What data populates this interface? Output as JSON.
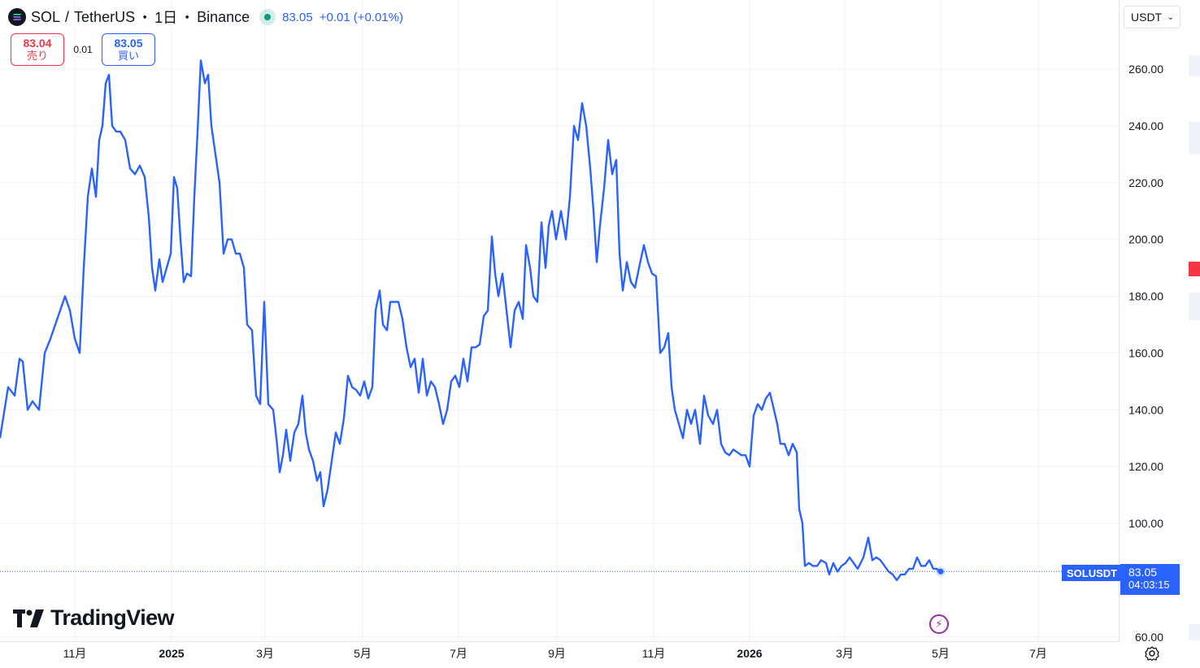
{
  "header": {
    "base": "SOL",
    "quote": "TetherUS",
    "interval": "1日",
    "exchange": "Binance",
    "price": "83.05",
    "change": "+0.01",
    "change_pct": "(+0.01%)"
  },
  "trade": {
    "sell_price": "83.04",
    "sell_label": "売り",
    "spread": "0.01",
    "buy_price": "83.05",
    "buy_label": "買い"
  },
  "currency": {
    "label": "USDT"
  },
  "last_price": {
    "symbol": "SOLUSDT",
    "price": "83.05",
    "countdown": "04:03:15"
  },
  "branding": {
    "text": "TradingView"
  },
  "colors": {
    "line": "#2962ff",
    "sell": "#f23645",
    "buy": "#2962ff",
    "grid": "#f0f3fa",
    "bolt": "#9c27b0"
  },
  "icons": {
    "bolt": "lightning-icon",
    "settings": "gear-icon",
    "symbol": "solana-logo-icon"
  },
  "chart_data": {
    "type": "line",
    "series": [
      {
        "values": [
          [
            0,
            130
          ],
          [
            10,
            148
          ],
          [
            18,
            145
          ],
          [
            24,
            158
          ],
          [
            28,
            157
          ],
          [
            34,
            140
          ],
          [
            40,
            143
          ],
          [
            48,
            140
          ],
          [
            55,
            160
          ],
          [
            62,
            165
          ],
          [
            68,
            170
          ],
          [
            74,
            175
          ],
          [
            80,
            180
          ],
          [
            86,
            175
          ],
          [
            92,
            165
          ],
          [
            98,
            160
          ],
          [
            103,
            190
          ],
          [
            108,
            215
          ],
          [
            113,
            225
          ],
          [
            118,
            215
          ],
          [
            122,
            235
          ],
          [
            126,
            240
          ],
          [
            130,
            255
          ],
          [
            134,
            258
          ],
          [
            138,
            240
          ],
          [
            143,
            238
          ],
          [
            148,
            238
          ],
          [
            154,
            235
          ],
          [
            160,
            225
          ],
          [
            166,
            223
          ],
          [
            172,
            226
          ],
          [
            178,
            222
          ],
          [
            183,
            208
          ],
          [
            187,
            190
          ],
          [
            191,
            182
          ],
          [
            196,
            193
          ],
          [
            200,
            185
          ],
          [
            205,
            190
          ],
          [
            210,
            195
          ],
          [
            214,
            222
          ],
          [
            218,
            218
          ],
          [
            222,
            200
          ],
          [
            226,
            185
          ],
          [
            230,
            188
          ],
          [
            235,
            187
          ],
          [
            239,
            215
          ],
          [
            243,
            238
          ],
          [
            247,
            263
          ],
          [
            252,
            255
          ],
          [
            256,
            258
          ],
          [
            260,
            240
          ],
          [
            265,
            230
          ],
          [
            270,
            220
          ],
          [
            275,
            195
          ],
          [
            280,
            200
          ],
          [
            285,
            200
          ],
          [
            290,
            195
          ],
          [
            295,
            195
          ],
          [
            300,
            190
          ],
          [
            304,
            170
          ],
          [
            310,
            168
          ],
          [
            315,
            145
          ],
          [
            320,
            142
          ],
          [
            325,
            178
          ],
          [
            330,
            142
          ],
          [
            336,
            140
          ],
          [
            340,
            130
          ],
          [
            344,
            118
          ],
          [
            348,
            124
          ],
          [
            352,
            133
          ],
          [
            357,
            122
          ],
          [
            362,
            132
          ],
          [
            367,
            135
          ],
          [
            372,
            145
          ],
          [
            376,
            132
          ],
          [
            380,
            126
          ],
          [
            385,
            122
          ],
          [
            390,
            115
          ],
          [
            394,
            118
          ],
          [
            398,
            106
          ],
          [
            403,
            112
          ],
          [
            408,
            122
          ],
          [
            413,
            132
          ],
          [
            418,
            128
          ],
          [
            423,
            137
          ],
          [
            428,
            152
          ],
          [
            433,
            148
          ],
          [
            438,
            147
          ],
          [
            443,
            145
          ],
          [
            448,
            150
          ],
          [
            453,
            144
          ],
          [
            458,
            148
          ],
          [
            462,
            175
          ],
          [
            467,
            182
          ],
          [
            471,
            170
          ],
          [
            476,
            168
          ],
          [
            480,
            178
          ],
          [
            485,
            178
          ],
          [
            490,
            178
          ],
          [
            495,
            172
          ],
          [
            500,
            162
          ],
          [
            505,
            155
          ],
          [
            510,
            158
          ],
          [
            515,
            146
          ],
          [
            520,
            158
          ],
          [
            525,
            145
          ],
          [
            530,
            150
          ],
          [
            535,
            148
          ],
          [
            540,
            142
          ],
          [
            545,
            135
          ],
          [
            550,
            140
          ],
          [
            555,
            150
          ],
          [
            560,
            152
          ],
          [
            565,
            148
          ],
          [
            570,
            158
          ],
          [
            575,
            150
          ],
          [
            580,
            162
          ],
          [
            585,
            162
          ],
          [
            590,
            163
          ],
          [
            595,
            173
          ],
          [
            600,
            175
          ],
          [
            605,
            201
          ],
          [
            609,
            188
          ],
          [
            613,
            180
          ],
          [
            618,
            188
          ],
          [
            623,
            175
          ],
          [
            628,
            162
          ],
          [
            633,
            175
          ],
          [
            638,
            178
          ],
          [
            643,
            172
          ],
          [
            647,
            198
          ],
          [
            652,
            190
          ],
          [
            656,
            180
          ],
          [
            661,
            178
          ],
          [
            666,
            206
          ],
          [
            671,
            190
          ],
          [
            675,
            205
          ],
          [
            679,
            210
          ],
          [
            684,
            200
          ],
          [
            690,
            210
          ],
          [
            696,
            200
          ],
          [
            701,
            215
          ],
          [
            706,
            240
          ],
          [
            711,
            235
          ],
          [
            716,
            248
          ],
          [
            721,
            240
          ],
          [
            726,
            225
          ],
          [
            730,
            210
          ],
          [
            734,
            192
          ],
          [
            738,
            205
          ],
          [
            743,
            218
          ],
          [
            748,
            235
          ],
          [
            753,
            223
          ],
          [
            758,
            228
          ],
          [
            762,
            195
          ],
          [
            766,
            182
          ],
          [
            771,
            192
          ],
          [
            776,
            185
          ],
          [
            781,
            183
          ],
          [
            786,
            190
          ],
          [
            792,
            198
          ],
          [
            797,
            192
          ],
          [
            802,
            188
          ],
          [
            807,
            187
          ],
          [
            812,
            160
          ],
          [
            817,
            162
          ],
          [
            822,
            167
          ],
          [
            826,
            148
          ],
          [
            830,
            140
          ],
          [
            835,
            135
          ],
          [
            840,
            130
          ],
          [
            845,
            140
          ],
          [
            850,
            135
          ],
          [
            855,
            140
          ],
          [
            861,
            128
          ],
          [
            866,
            145
          ],
          [
            871,
            138
          ],
          [
            877,
            135
          ],
          [
            882,
            140
          ],
          [
            887,
            128
          ],
          [
            892,
            125
          ],
          [
            897,
            124
          ],
          [
            902,
            126
          ],
          [
            907,
            125
          ],
          [
            912,
            124
          ],
          [
            917,
            124
          ],
          [
            922,
            120
          ],
          [
            927,
            138
          ],
          [
            932,
            142
          ],
          [
            937,
            140
          ],
          [
            942,
            144
          ],
          [
            947,
            146
          ],
          [
            952,
            140
          ],
          [
            956,
            135
          ],
          [
            960,
            128
          ],
          [
            965,
            128
          ],
          [
            970,
            124
          ],
          [
            975,
            128
          ],
          [
            980,
            125
          ],
          [
            983,
            105
          ],
          [
            987,
            100
          ],
          [
            990,
            85
          ],
          [
            995,
            86
          ],
          [
            1000,
            85
          ],
          [
            1005,
            85
          ],
          [
            1010,
            87
          ],
          [
            1016,
            86
          ],
          [
            1020,
            82
          ],
          [
            1025,
            86
          ],
          [
            1030,
            83
          ],
          [
            1035,
            85
          ],
          [
            1040,
            86
          ],
          [
            1045,
            88
          ],
          [
            1050,
            86
          ],
          [
            1055,
            84
          ],
          [
            1062,
            88
          ],
          [
            1068,
            95
          ],
          [
            1073,
            87
          ],
          [
            1078,
            88
          ],
          [
            1083,
            87
          ],
          [
            1088,
            85
          ],
          [
            1093,
            83
          ],
          [
            1098,
            82
          ],
          [
            1103,
            80
          ],
          [
            1108,
            82
          ],
          [
            1113,
            82
          ],
          [
            1118,
            84
          ],
          [
            1123,
            84
          ],
          [
            1128,
            88
          ],
          [
            1133,
            85
          ],
          [
            1138,
            85
          ],
          [
            1143,
            87
          ],
          [
            1148,
            84
          ],
          [
            1152,
            84
          ],
          [
            1157,
            83.05
          ]
        ]
      }
    ],
    "x_ticks": [
      {
        "px": 92,
        "label": "11月",
        "bold": false
      },
      {
        "px": 211,
        "label": "2025",
        "bold": true
      },
      {
        "px": 326,
        "label": "3月",
        "bold": false
      },
      {
        "px": 446,
        "label": "5月",
        "bold": false
      },
      {
        "px": 564,
        "label": "7月",
        "bold": false
      },
      {
        "px": 685,
        "label": "9月",
        "bold": false
      },
      {
        "px": 804,
        "label": "11月",
        "bold": false
      },
      {
        "px": 922,
        "label": "2026",
        "bold": true
      },
      {
        "px": 1039,
        "label": "3月",
        "bold": false
      },
      {
        "px": 1157,
        "label": "5月",
        "bold": false
      },
      {
        "px": 1277,
        "label": "7月",
        "bold": false
      }
    ],
    "y_ticks": [
      {
        "value": 260,
        "label": "260.00"
      },
      {
        "value": 240,
        "label": "240.00"
      },
      {
        "value": 220,
        "label": "220.00"
      },
      {
        "value": 200,
        "label": "200.00"
      },
      {
        "value": 180,
        "label": "180.00"
      },
      {
        "value": 160,
        "label": "160.00"
      },
      {
        "value": 140,
        "label": "140.00"
      },
      {
        "value": 120,
        "label": "120.00"
      },
      {
        "value": 100,
        "label": "100.00"
      },
      {
        "value": 60,
        "label": "60.00"
      }
    ],
    "last_value": 83.05,
    "grid": true
  }
}
